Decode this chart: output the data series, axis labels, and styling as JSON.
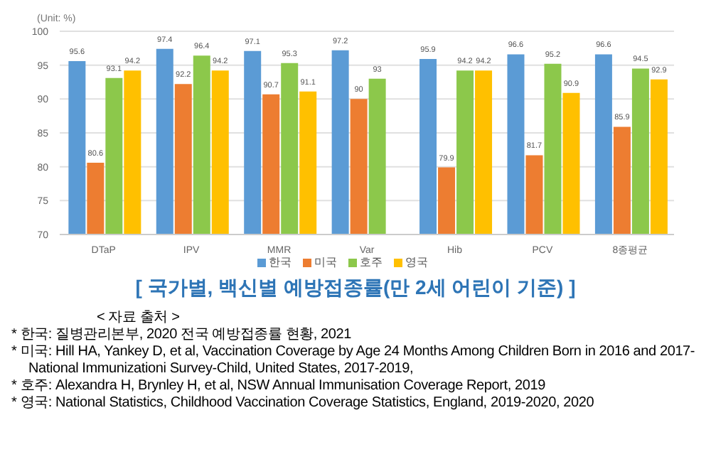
{
  "chart_data": {
    "type": "bar",
    "title": "[ 국가별, 백신별 예방접종률(만 2세 어린이 기준) ]",
    "ylabel": "(Unit: %)",
    "categories": [
      "DTaP",
      "IPV",
      "MMR",
      "Var",
      "Hib",
      "PCV",
      "8종평균"
    ],
    "series": [
      {
        "name": "한국",
        "color": "#5b9bd5",
        "values": [
          95.6,
          97.4,
          97.1,
          97.2,
          95.9,
          96.6,
          96.6
        ]
      },
      {
        "name": "미국",
        "color": "#ed7d31",
        "values": [
          80.6,
          92.2,
          90.7,
          90,
          79.9,
          81.7,
          85.9
        ]
      },
      {
        "name": "호주",
        "color": "#8cc84b",
        "values": [
          93.1,
          96.4,
          95.3,
          93,
          94.2,
          95.2,
          94.5
        ]
      },
      {
        "name": "영국",
        "color": "#ffc000",
        "values": [
          94.2,
          94.2,
          91.1,
          null,
          94.2,
          90.9,
          92.9
        ]
      }
    ],
    "ylim": [
      70,
      100
    ],
    "yticks": [
      70,
      75,
      80,
      85,
      90,
      95,
      100
    ],
    "grid": "y",
    "legend": "bottom",
    "data_labels": true,
    "annotations": [
      "< 자료 출처 >",
      "* 한국: 질병관리본부, 2020 전국 예방접종률 현황, 2021",
      "* 미국: Hill HA, Yankey D, et al, Vaccination Coverage by Age 24 Months Among Children Born in 2016 and 2017-National Immunizationi Survey-Child, United States, 2017-2019,",
      "* 호주: Alexandra H, Brynley H, et al, NSW Annual Immunisation Coverage Report, 2019",
      "* 영국: National Statistics, Childhood Vaccination Coverage Statistics, England, 2019-2020, 2020"
    ]
  }
}
